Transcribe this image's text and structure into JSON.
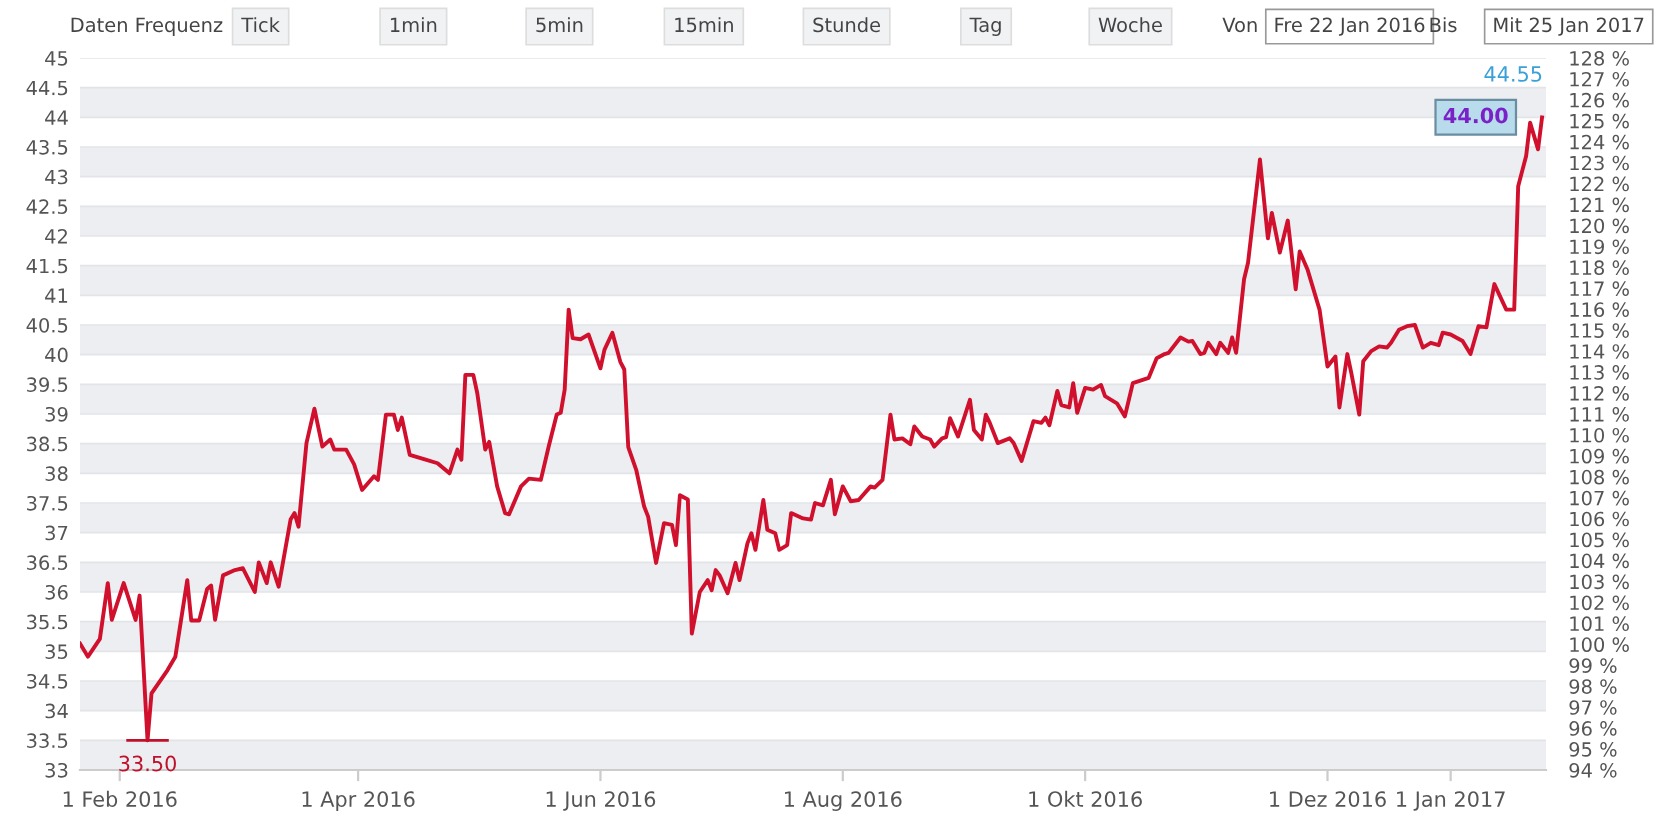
{
  "chart_data": {
    "type": "line",
    "x": [
      "2016-01-22",
      "2016-01-24",
      "2016-01-27",
      "2016-01-29",
      "2016-01-30",
      "2016-02-02",
      "2016-02-05",
      "2016-02-06",
      "2016-02-08",
      "2016-02-09",
      "2016-02-13",
      "2016-02-15",
      "2016-02-18",
      "2016-02-19",
      "2016-02-21",
      "2016-02-23",
      "2016-02-24",
      "2016-02-25",
      "2016-02-27",
      "2016-03-01",
      "2016-03-03",
      "2016-03-06",
      "2016-03-07",
      "2016-03-09",
      "2016-03-10",
      "2016-03-12",
      "2016-03-15",
      "2016-03-16",
      "2016-03-17",
      "2016-03-19",
      "2016-03-21",
      "2016-03-23",
      "2016-03-25",
      "2016-03-26",
      "2016-03-29",
      "2016-03-31",
      "2016-04-02",
      "2016-04-05",
      "2016-04-06",
      "2016-04-08",
      "2016-04-10",
      "2016-04-11",
      "2016-04-12",
      "2016-04-14",
      "2016-04-18",
      "2016-04-21",
      "2016-04-24",
      "2016-04-26",
      "2016-04-27",
      "2016-04-28",
      "2016-04-30",
      "2016-05-01",
      "2016-05-03",
      "2016-05-04",
      "2016-05-06",
      "2016-05-08",
      "2016-05-09",
      "2016-05-12",
      "2016-05-14",
      "2016-05-17",
      "2016-05-19",
      "2016-05-21",
      "2016-05-22",
      "2016-05-23",
      "2016-05-24",
      "2016-05-25",
      "2016-05-27",
      "2016-05-29",
      "2016-06-01",
      "2016-06-02",
      "2016-06-04",
      "2016-06-06",
      "2016-06-07",
      "2016-06-08",
      "2016-06-10",
      "2016-06-12",
      "2016-06-13",
      "2016-06-15",
      "2016-06-17",
      "2016-06-19",
      "2016-06-20",
      "2016-06-21",
      "2016-06-23",
      "2016-06-24",
      "2016-06-26",
      "2016-06-28",
      "2016-06-29",
      "2016-06-30",
      "2016-07-01",
      "2016-07-03",
      "2016-07-05",
      "2016-07-06",
      "2016-07-08",
      "2016-07-09",
      "2016-07-10",
      "2016-07-12",
      "2016-07-13",
      "2016-07-15",
      "2016-07-16",
      "2016-07-18",
      "2016-07-19",
      "2016-07-22",
      "2016-07-24",
      "2016-07-25",
      "2016-07-27",
      "2016-07-29",
      "2016-07-30",
      "2016-08-01",
      "2016-08-03",
      "2016-08-05",
      "2016-08-08",
      "2016-08-09",
      "2016-08-11",
      "2016-08-13",
      "2016-08-14",
      "2016-08-16",
      "2016-08-18",
      "2016-08-19",
      "2016-08-21",
      "2016-08-23",
      "2016-08-24",
      "2016-08-26",
      "2016-08-27",
      "2016-08-28",
      "2016-08-30",
      "2016-09-02",
      "2016-09-03",
      "2016-09-05",
      "2016-09-06",
      "2016-09-07",
      "2016-09-09",
      "2016-09-12",
      "2016-09-13",
      "2016-09-15",
      "2016-09-18",
      "2016-09-20",
      "2016-09-21",
      "2016-09-22",
      "2016-09-24",
      "2016-09-25",
      "2016-09-27",
      "2016-09-28",
      "2016-09-29",
      "2016-10-01",
      "2016-10-03",
      "2016-10-05",
      "2016-10-06",
      "2016-10-09",
      "2016-10-11",
      "2016-10-12",
      "2016-10-13",
      "2016-10-17",
      "2016-10-19",
      "2016-10-21",
      "2016-10-22",
      "2016-10-25",
      "2016-10-27",
      "2016-10-28",
      "2016-10-30",
      "2016-10-31",
      "2016-11-01",
      "2016-11-03",
      "2016-11-04",
      "2016-11-06",
      "2016-11-07",
      "2016-11-08",
      "2016-11-10",
      "2016-11-11",
      "2016-11-14",
      "2016-11-16",
      "2016-11-17",
      "2016-11-19",
      "2016-11-21",
      "2016-11-23",
      "2016-11-24",
      "2016-11-26",
      "2016-11-29",
      "2016-12-01",
      "2016-12-03",
      "2016-12-04",
      "2016-12-06",
      "2016-12-07",
      "2016-12-09",
      "2016-12-10",
      "2016-12-12",
      "2016-12-14",
      "2016-12-16",
      "2016-12-17",
      "2016-12-19",
      "2016-12-21",
      "2016-12-23",
      "2016-12-25",
      "2016-12-27",
      "2016-12-29",
      "2016-12-30",
      "2017-01-01",
      "2017-01-04",
      "2017-01-06",
      "2017-01-08",
      "2017-01-10",
      "2017-01-12",
      "2017-01-15",
      "2017-01-17",
      "2017-01-18",
      "2017-01-20",
      "2017-01-21",
      "2017-01-23",
      "2017-01-24"
    ],
    "series": [
      {
        "color": "#d0102c",
        "values": [
          35.13,
          34.91,
          35.21,
          36.15,
          35.53,
          36.15,
          35.53,
          35.94,
          33.5,
          34.29,
          34.68,
          34.91,
          36.2,
          35.52,
          35.52,
          36.05,
          36.11,
          35.53,
          36.28,
          36.37,
          36.4,
          36.0,
          36.5,
          36.15,
          36.5,
          36.09,
          37.22,
          37.33,
          37.1,
          38.51,
          39.09,
          38.45,
          38.57,
          38.4,
          38.4,
          38.15,
          37.72,
          37.95,
          37.89,
          38.99,
          38.99,
          38.73,
          38.94,
          38.31,
          38.23,
          38.17,
          38.0,
          38.4,
          38.23,
          39.66,
          39.66,
          39.35,
          38.4,
          38.53,
          37.78,
          37.33,
          37.31,
          37.78,
          37.91,
          37.89,
          38.46,
          38.99,
          39.02,
          39.41,
          40.76,
          40.28,
          40.26,
          40.34,
          39.77,
          40.08,
          40.37,
          39.88,
          39.75,
          38.44,
          38.06,
          37.44,
          37.27,
          36.49,
          37.16,
          37.13,
          36.79,
          37.63,
          37.56,
          35.3,
          36.0,
          36.2,
          36.03,
          36.37,
          36.28,
          35.98,
          36.49,
          36.2,
          36.82,
          36.99,
          36.71,
          37.55,
          37.05,
          36.99,
          36.71,
          36.79,
          37.33,
          37.24,
          37.22,
          37.5,
          37.46,
          37.89,
          37.31,
          37.78,
          37.53,
          37.55,
          37.78,
          37.76,
          37.89,
          38.99,
          38.57,
          38.59,
          38.49,
          38.79,
          38.62,
          38.57,
          38.45,
          38.59,
          38.61,
          38.93,
          38.62,
          39.24,
          38.73,
          38.57,
          38.99,
          38.85,
          38.51,
          38.59,
          38.51,
          38.21,
          38.88,
          38.85,
          38.94,
          38.81,
          39.39,
          39.15,
          39.11,
          39.52,
          39.02,
          39.44,
          39.41,
          39.49,
          39.3,
          39.18,
          38.96,
          39.24,
          39.52,
          39.61,
          39.94,
          40.01,
          40.03,
          40.29,
          40.22,
          40.23,
          40.01,
          40.03,
          40.2,
          40.01,
          40.2,
          40.03,
          40.29,
          40.03,
          41.27,
          41.55,
          43.29,
          41.96,
          42.39,
          41.72,
          42.26,
          41.1,
          41.74,
          41.43,
          40.76,
          39.8,
          39.97,
          39.11,
          40.01,
          39.69,
          38.99,
          39.89,
          40.06,
          40.14,
          40.12,
          40.2,
          40.42,
          40.48,
          40.5,
          40.12,
          40.2,
          40.16,
          40.37,
          40.34,
          40.23,
          40.01,
          40.48,
          40.46,
          41.19,
          40.76,
          40.76,
          42.84,
          43.35,
          43.91,
          43.46,
          44.0
        ]
      }
    ],
    "xlim": [
      "2016-01-22",
      "2017-01-25"
    ],
    "xticks": [
      {
        "value": "2016-02-01",
        "label": "1 Feb 2016"
      },
      {
        "value": "2016-04-01",
        "label": "1 Apr 2016"
      },
      {
        "value": "2016-06-01",
        "label": "1 Jun 2016"
      },
      {
        "value": "2016-08-01",
        "label": "1 Aug 2016"
      },
      {
        "value": "2016-10-01",
        "label": "1 Okt 2016"
      },
      {
        "value": "2016-12-01",
        "label": "1 Dez 2016"
      },
      {
        "value": "2017-01-01",
        "label": "1 Jan 2017"
      }
    ],
    "ylim": [
      33,
      45
    ],
    "yticks": [
      33,
      33.5,
      34,
      34.5,
      35,
      35.5,
      36,
      36.5,
      37,
      37.5,
      38,
      38.5,
      39,
      39.5,
      40,
      40.5,
      41,
      41.5,
      42,
      42.5,
      43,
      43.5,
      44,
      44.5,
      45
    ],
    "y2lim": [
      94,
      128
    ],
    "y2ticks": [
      {
        "value": 94,
        "label": "94 %"
      },
      {
        "value": 95,
        "label": "95 %"
      },
      {
        "value": 96,
        "label": "96 %"
      },
      {
        "value": 97,
        "label": "97 %"
      },
      {
        "value": 98,
        "label": "98 %"
      },
      {
        "value": 99,
        "label": "99 %"
      },
      {
        "value": 100,
        "label": "100 %"
      },
      {
        "value": 101,
        "label": "101 %"
      },
      {
        "value": 102,
        "label": "102 %"
      },
      {
        "value": 103,
        "label": "103 %"
      },
      {
        "value": 104,
        "label": "104 %"
      },
      {
        "value": 105,
        "label": "105 %"
      },
      {
        "value": 106,
        "label": "106 %"
      },
      {
        "value": 107,
        "label": "107 %"
      },
      {
        "value": 108,
        "label": "108 %"
      },
      {
        "value": 109,
        "label": "109 %"
      },
      {
        "value": 110,
        "label": "110 %"
      },
      {
        "value": 111,
        "label": "111 %"
      },
      {
        "value": 112,
        "label": "112 %"
      },
      {
        "value": 113,
        "label": "113 %"
      },
      {
        "value": 114,
        "label": "114 %"
      },
      {
        "value": 115,
        "label": "115 %"
      },
      {
        "value": 116,
        "label": "116 %"
      },
      {
        "value": 117,
        "label": "117 %"
      },
      {
        "value": 118,
        "label": "118 %"
      },
      {
        "value": 119,
        "label": "119 %"
      },
      {
        "value": 120,
        "label": "120 %"
      },
      {
        "value": 121,
        "label": "121 %"
      },
      {
        "value": 122,
        "label": "122 %"
      },
      {
        "value": 123,
        "label": "123 %"
      },
      {
        "value": 124,
        "label": "124 %"
      },
      {
        "value": 125,
        "label": "125 %"
      },
      {
        "value": 126,
        "label": "126 %"
      },
      {
        "value": 127,
        "label": "127 %"
      },
      {
        "value": 128,
        "label": "128 %"
      }
    ],
    "grid": "y",
    "annotations": [
      {
        "text": "33.50",
        "x": "2016-02-08",
        "y": 33.5
      },
      {
        "text": "44.00",
        "x": "2017-01-24",
        "y": 44.0
      },
      "44.55",
      "Daten Frequenz",
      "Tick",
      "1min",
      "5min",
      "15min",
      "Stunde",
      "Tag",
      "Woche",
      "Von",
      "Fre 22 Jan 2016",
      "Bis",
      "Mit 25 Jan 2017"
    ]
  }
}
